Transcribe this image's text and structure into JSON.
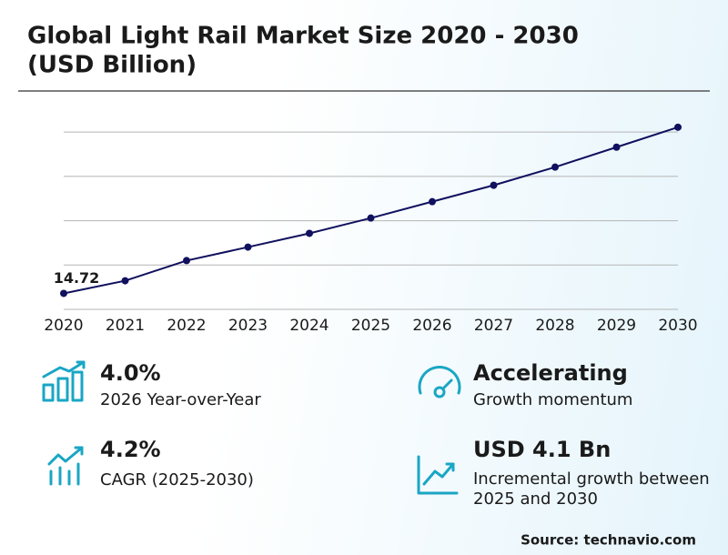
{
  "chart_data": {
    "type": "line",
    "title": "Global Light Rail Market Size 2020 - 2030",
    "subtitle": "(USD Billion)",
    "categories": [
      "2020",
      "2021",
      "2022",
      "2023",
      "2024",
      "2025",
      "2026",
      "2027",
      "2028",
      "2029",
      "2030"
    ],
    "series": [
      {
        "name": "Market Size",
        "color": "#10105e",
        "values": [
          14.72,
          15.29,
          16.2,
          16.81,
          17.43,
          18.12,
          18.86,
          19.6,
          20.42,
          21.32,
          22.22
        ],
        "value_labels": [
          "14.72",
          null,
          null,
          null,
          null,
          null,
          null,
          null,
          null,
          null,
          null
        ]
      }
    ],
    "ylim": [
      14,
      22.5
    ],
    "yticks": [
      14,
      16,
      18,
      20,
      22
    ],
    "grid": true
  },
  "stats": [
    {
      "value": "4.0%",
      "label": "2026 Year-over-Year"
    },
    {
      "value": "Accelerating",
      "label": "Growth momentum"
    },
    {
      "value": "4.2%",
      "label": "CAGR (2025-2030)"
    },
    {
      "value": "USD 4.1 Bn",
      "label": "Incremental growth between 2025 and 2030"
    }
  ],
  "source": "Source: technavio.com"
}
